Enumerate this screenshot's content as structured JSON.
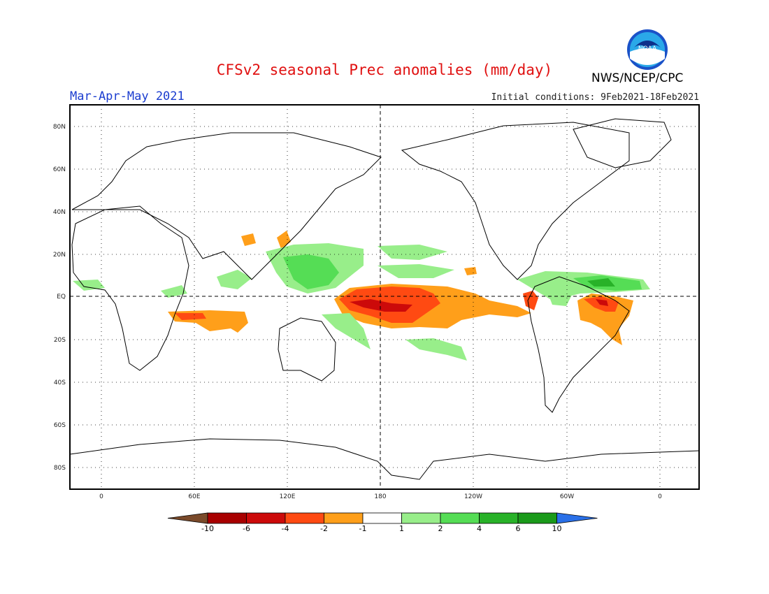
{
  "title": "CFSv2 seasonal Prec anomalies (mm/day)",
  "season": "Mar-Apr-May 2021",
  "agency": "NWS/NCEP/CPC",
  "initial_conditions": "Initial conditions: 9Feb2021-18Feb2021",
  "logo_text": "NOAA",
  "lat_labels": [
    "80N",
    "60N",
    "40N",
    "20N",
    "EQ",
    "20S",
    "40S",
    "60S",
    "80S"
  ],
  "lon_labels": [
    "0",
    "60E",
    "120E",
    "180",
    "120W",
    "60W",
    "0"
  ],
  "colorbar": {
    "ticks": [
      "-10",
      "-6",
      "-4",
      "-2",
      "-1",
      "1",
      "2",
      "4",
      "6",
      "10"
    ],
    "colors": [
      "#7a4a2a",
      "#a80000",
      "#cc0a0a",
      "#ff4a12",
      "#ff9f1a",
      "#ffffff",
      "#98ee8a",
      "#55dd55",
      "#28b228",
      "#1a9a1a",
      "#2a70e8"
    ]
  }
}
